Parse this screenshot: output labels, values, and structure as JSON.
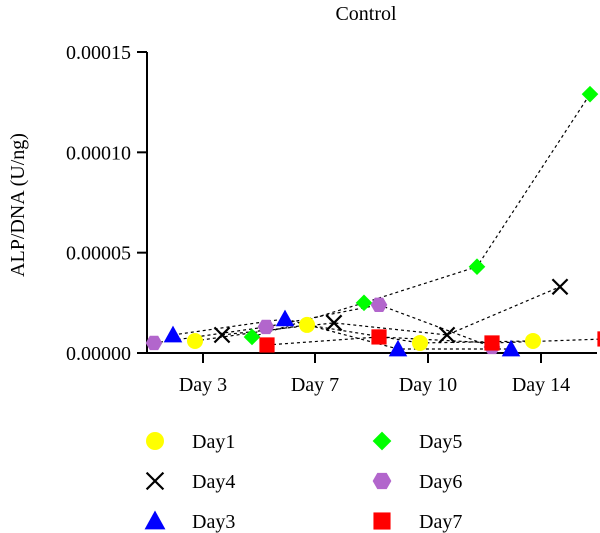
{
  "chart_data": {
    "type": "scatter",
    "title": "Control",
    "xlabel": "",
    "ylabel": "ALP/DNA (U/ng)",
    "categories": [
      "Day 3",
      "Day 7",
      "Day 10",
      "Day 14"
    ],
    "yticks": [
      "0.00000",
      "0.00005",
      "0.00010",
      "0.00015"
    ],
    "ylim": [
      0,
      0.00015
    ],
    "grid": false,
    "legend_position": "bottom",
    "series": [
      {
        "name": "Day1",
        "marker": "circle",
        "color": "#ffff00",
        "points": [
          {
            "x": "Day 3",
            "y": 6e-06
          },
          {
            "x": "Day 7",
            "y": 1.4e-05
          },
          {
            "x": "Day 10",
            "y": 5e-06
          },
          {
            "x": "Day 14",
            "y": 6e-06
          }
        ]
      },
      {
        "name": "Day4",
        "marker": "x",
        "color": "#000000",
        "points": [
          {
            "x": "Day 3",
            "y": 9e-06
          },
          {
            "x": "Day 7",
            "y": 1.5e-05
          },
          {
            "x": "Day 10",
            "y": 9e-06
          },
          {
            "x": "Day 14",
            "y": 3.3e-05
          }
        ]
      },
      {
        "name": "Day3",
        "marker": "triangle",
        "color": "#0000ff",
        "points": [
          {
            "x": "Day 3",
            "y": 9e-06
          },
          {
            "x": "Day 7",
            "y": 1.7e-05
          },
          {
            "x": "Day 10",
            "y": 2e-06
          },
          {
            "x": "Day 14",
            "y": 2e-06
          }
        ]
      },
      {
        "name": "Day5",
        "marker": "diamond",
        "color": "#00ff00",
        "points": [
          {
            "x": "Day 3",
            "y": 8e-06
          },
          {
            "x": "Day 7",
            "y": 2.5e-05
          },
          {
            "x": "Day 10",
            "y": 4.3e-05
          },
          {
            "x": "Day 14",
            "y": 0.000129
          }
        ]
      },
      {
        "name": "Day6",
        "marker": "hexagon",
        "color": "#b266cc",
        "points": [
          {
            "x": "Day 3",
            "y": 5e-06
          },
          {
            "x": "Day 7",
            "y": 1.3e-05
          },
          {
            "x": "Day 10",
            "y": 2.4e-05
          },
          {
            "x": "Day 14",
            "y": 3e-06
          }
        ]
      },
      {
        "name": "Day7",
        "marker": "square",
        "color": "#ff0000",
        "points": [
          {
            "x": "Day 3",
            "y": 4e-06
          },
          {
            "x": "Day 7",
            "y": 8e-06
          },
          {
            "x": "Day 10",
            "y": 5e-06
          },
          {
            "x": "Day 14",
            "y": 7e-06
          }
        ]
      }
    ]
  }
}
